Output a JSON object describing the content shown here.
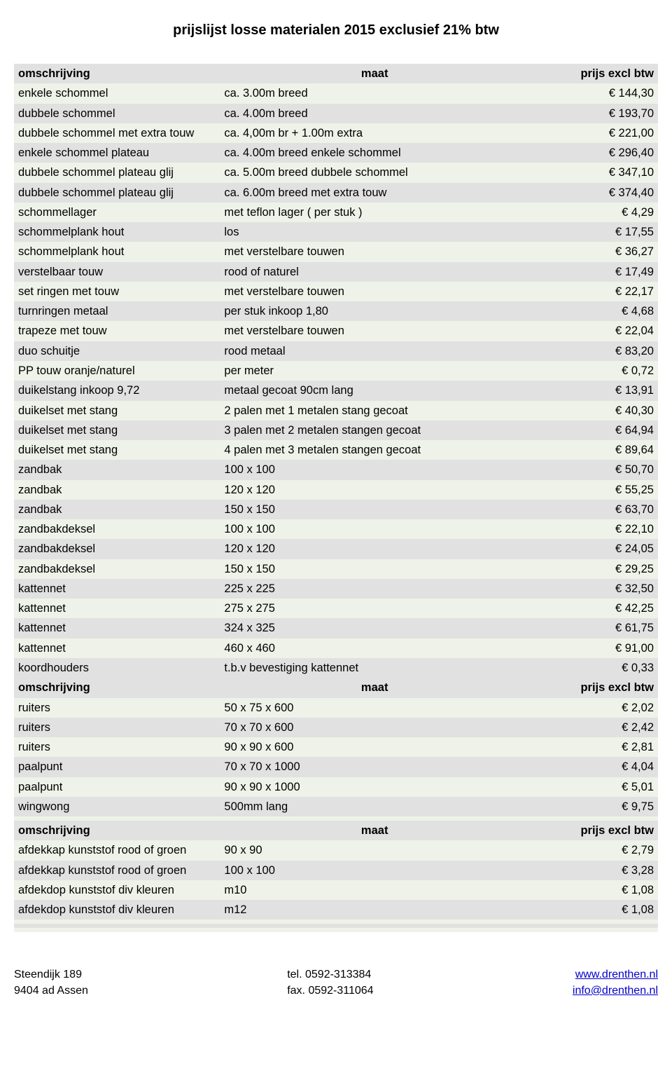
{
  "title": "prijslijst losse materialen 2015  exclusief 21% btw",
  "table": {
    "columns": [
      "omschrijving",
      "maat",
      "prijs excl btw"
    ],
    "header_bg": "#e2e1e1",
    "band_colors": [
      "#eef2e8",
      "#e2e1e1"
    ],
    "text_color": "#000000",
    "font_size_pt": 12,
    "col_widths_pct": [
      32,
      48,
      20
    ],
    "sections": [
      {
        "header": [
          "omschrijving",
          "maat",
          "prijs excl btw"
        ],
        "rows": [
          [
            "enkele schommel",
            "ca. 3.00m breed",
            "€ 144,30"
          ],
          [
            "dubbele schommel",
            "ca. 4.00m breed",
            "€ 193,70"
          ],
          [
            "dubbele schommel met extra touw",
            "ca. 4,00m br + 1.00m extra",
            "€ 221,00"
          ],
          [
            "enkele schommel plateau",
            "ca. 4.00m breed enkele schommel",
            "€ 296,40"
          ],
          [
            "dubbele schommel plateau glij",
            "ca. 5.00m breed dubbele schommel",
            "€ 347,10"
          ],
          [
            "dubbele schommel plateau glij",
            "ca. 6.00m breed met extra touw",
            "€ 374,40"
          ],
          [
            "schommellager",
            "met teflon lager ( per stuk )",
            "€ 4,29"
          ],
          [
            "schommelplank hout",
            "los",
            "€ 17,55"
          ],
          [
            "schommelplank hout",
            "met verstelbare touwen",
            "€ 36,27"
          ],
          [
            "verstelbaar touw",
            "rood of naturel",
            "€ 17,49"
          ],
          [
            "set ringen met touw",
            "met verstelbare touwen",
            "€ 22,17"
          ],
          [
            "turnringen metaal",
            "per stuk  inkoop 1,80",
            "€ 4,68"
          ],
          [
            "trapeze met touw",
            "met verstelbare touwen",
            "€ 22,04"
          ],
          [
            "duo schuitje",
            "rood metaal",
            "€ 83,20"
          ],
          [
            "PP touw oranje/naturel",
            "per meter",
            "€ 0,72"
          ],
          [
            "duikelstang  inkoop 9,72",
            "metaal gecoat 90cm lang",
            "€ 13,91"
          ],
          [
            "duikelset met stang",
            "2 palen met 1 metalen stang gecoat",
            "€ 40,30"
          ],
          [
            "duikelset met stang",
            "3 palen met 2 metalen stangen gecoat",
            "€ 64,94"
          ],
          [
            "duikelset met stang",
            "4 palen met 3 metalen stangen gecoat",
            "€ 89,64"
          ],
          [
            "zandbak",
            "100 x 100",
            "€ 50,70"
          ],
          [
            "zandbak",
            "120 x 120",
            "€ 55,25"
          ],
          [
            "zandbak",
            "150 x 150",
            "€ 63,70"
          ],
          [
            "zandbakdeksel",
            "100 x 100",
            "€ 22,10"
          ],
          [
            "zandbakdeksel",
            "120 x 120",
            "€ 24,05"
          ],
          [
            "zandbakdeksel",
            "150 x 150",
            "€ 29,25"
          ],
          [
            "kattennet",
            "225 x 225",
            "€ 32,50"
          ],
          [
            "kattennet",
            "275 x 275",
            "€ 42,25"
          ],
          [
            "kattennet",
            "324 x 325",
            "€ 61,75"
          ],
          [
            "kattennet",
            "460 x 460",
            "€ 91,00"
          ],
          [
            "koordhouders",
            "t.b.v bevestiging kattennet",
            "€ 0,33"
          ]
        ]
      },
      {
        "header": [
          "omschrijving",
          "maat",
          "prijs excl btw"
        ],
        "rows": [
          [
            "ruiters",
            "50 x 75 x 600",
            "€ 2,02"
          ],
          [
            "ruiters",
            "70 x 70 x 600",
            "€ 2,42"
          ],
          [
            "ruiters",
            "90 x 90 x 600",
            "€ 2,81"
          ],
          [
            "paalpunt",
            "70 x 70 x 1000",
            "€ 4,04"
          ],
          [
            "paalpunt",
            "90 x 90 x 1000",
            "€ 5,01"
          ],
          [
            "wingwong",
            "500mm lang",
            "€ 9,75"
          ],
          [
            "",
            "",
            ""
          ]
        ]
      },
      {
        "header": [
          "omschrijving",
          "maat",
          "prijs excl btw"
        ],
        "rows": [
          [
            "afdekkap kunststof rood of groen",
            "90 x 90",
            "€ 2,79"
          ],
          [
            "afdekkap kunststof rood of groen",
            "100 x 100",
            "€ 3,28"
          ],
          [
            "afdekdop kunststof div kleuren",
            "m10",
            "€ 1,08"
          ],
          [
            "afdekdop kunststof div kleuren",
            "m12",
            "€ 1,08"
          ],
          [
            "",
            "",
            ""
          ],
          [
            "",
            "",
            ""
          ],
          [
            "",
            "",
            ""
          ]
        ]
      }
    ]
  },
  "footer": {
    "left": {
      "line1": "Steendijk 189",
      "line2": "9404 ad  Assen"
    },
    "mid": {
      "line1": "tel.  0592-313384",
      "line2": "fax. 0592-311064"
    },
    "right": {
      "line1": "www.drenthen.nl",
      "line2": "info@drenthen.nl"
    }
  }
}
